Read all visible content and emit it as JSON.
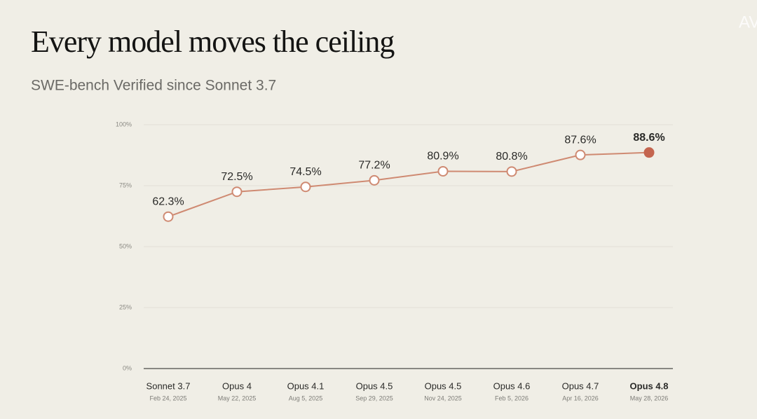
{
  "chart_data": {
    "type": "line",
    "title": "Every model moves the ceiling",
    "subtitle": "SWE-bench Verified since Sonnet 3.7",
    "watermark": "AV",
    "categories": [
      "Sonnet 3.7",
      "Opus 4",
      "Opus 4.1",
      "Opus 4.5",
      "Opus 4.5",
      "Opus 4.6",
      "Opus 4.7",
      "Opus 4.8"
    ],
    "dates": [
      "Feb 24, 2025",
      "May 22, 2025",
      "Aug 5, 2025",
      "Sep 29, 2025",
      "Nov 24, 2025",
      "Feb 5, 2026",
      "Apr 16, 2026",
      "May 28, 2026"
    ],
    "values": [
      62.3,
      72.5,
      74.5,
      77.2,
      80.9,
      80.8,
      87.6,
      88.6
    ],
    "value_labels": [
      "62.3%",
      "72.5%",
      "74.5%",
      "77.2%",
      "80.9%",
      "80.8%",
      "87.6%",
      "88.6%"
    ],
    "color": "#cf8a72",
    "highlight_color": "#c4654f",
    "ylim": [
      0,
      100
    ],
    "yticks": [
      {
        "value": 0,
        "label": "0%"
      },
      {
        "value": 25,
        "label": "25%"
      },
      {
        "value": 50,
        "label": "50%"
      },
      {
        "value": 75,
        "label": "75%"
      },
      {
        "value": 100,
        "label": "100%"
      }
    ],
    "grid": true
  }
}
